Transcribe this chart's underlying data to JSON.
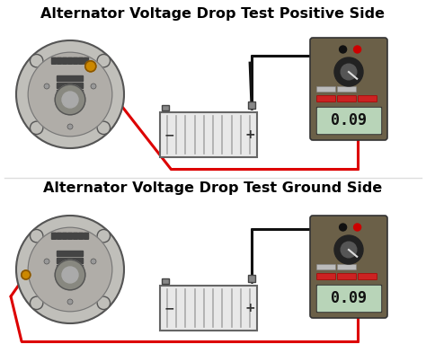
{
  "title_top": "Alternator Voltage Drop Test Positive Side",
  "title_bottom": "Alternator Voltage Drop Test Ground Side",
  "title_fontsize": 11.5,
  "title_fontweight": "bold",
  "bg_color": "#ffffff",
  "display_value": "0.09",
  "fig_width": 4.74,
  "fig_height": 3.93,
  "dpi": 100,
  "wire_color_red": "#dd0000",
  "wire_color_black": "#111111",
  "meter_body_color": "#6b6048",
  "meter_display_bg": "#b8d4b8",
  "meter_display_border": "#999999",
  "meter_display_text": "#111111",
  "meter_btn_red": "#cc2222",
  "meter_btn_gray": "#bbbbbb",
  "meter_knob_color": "#222222",
  "battery_fill": "#e8e8e8",
  "battery_outline": "#666666",
  "battery_plate": "#aaaaaa",
  "alt_outer": "#c0bfba",
  "alt_border": "#555555",
  "alt_inner1": "#a8a5a0",
  "alt_inner2": "#b5b2ac",
  "alt_center": "#909090",
  "alt_vent_color": "#444444",
  "alt_terminal": "#cc8800",
  "alt_terminal_border": "#885500"
}
